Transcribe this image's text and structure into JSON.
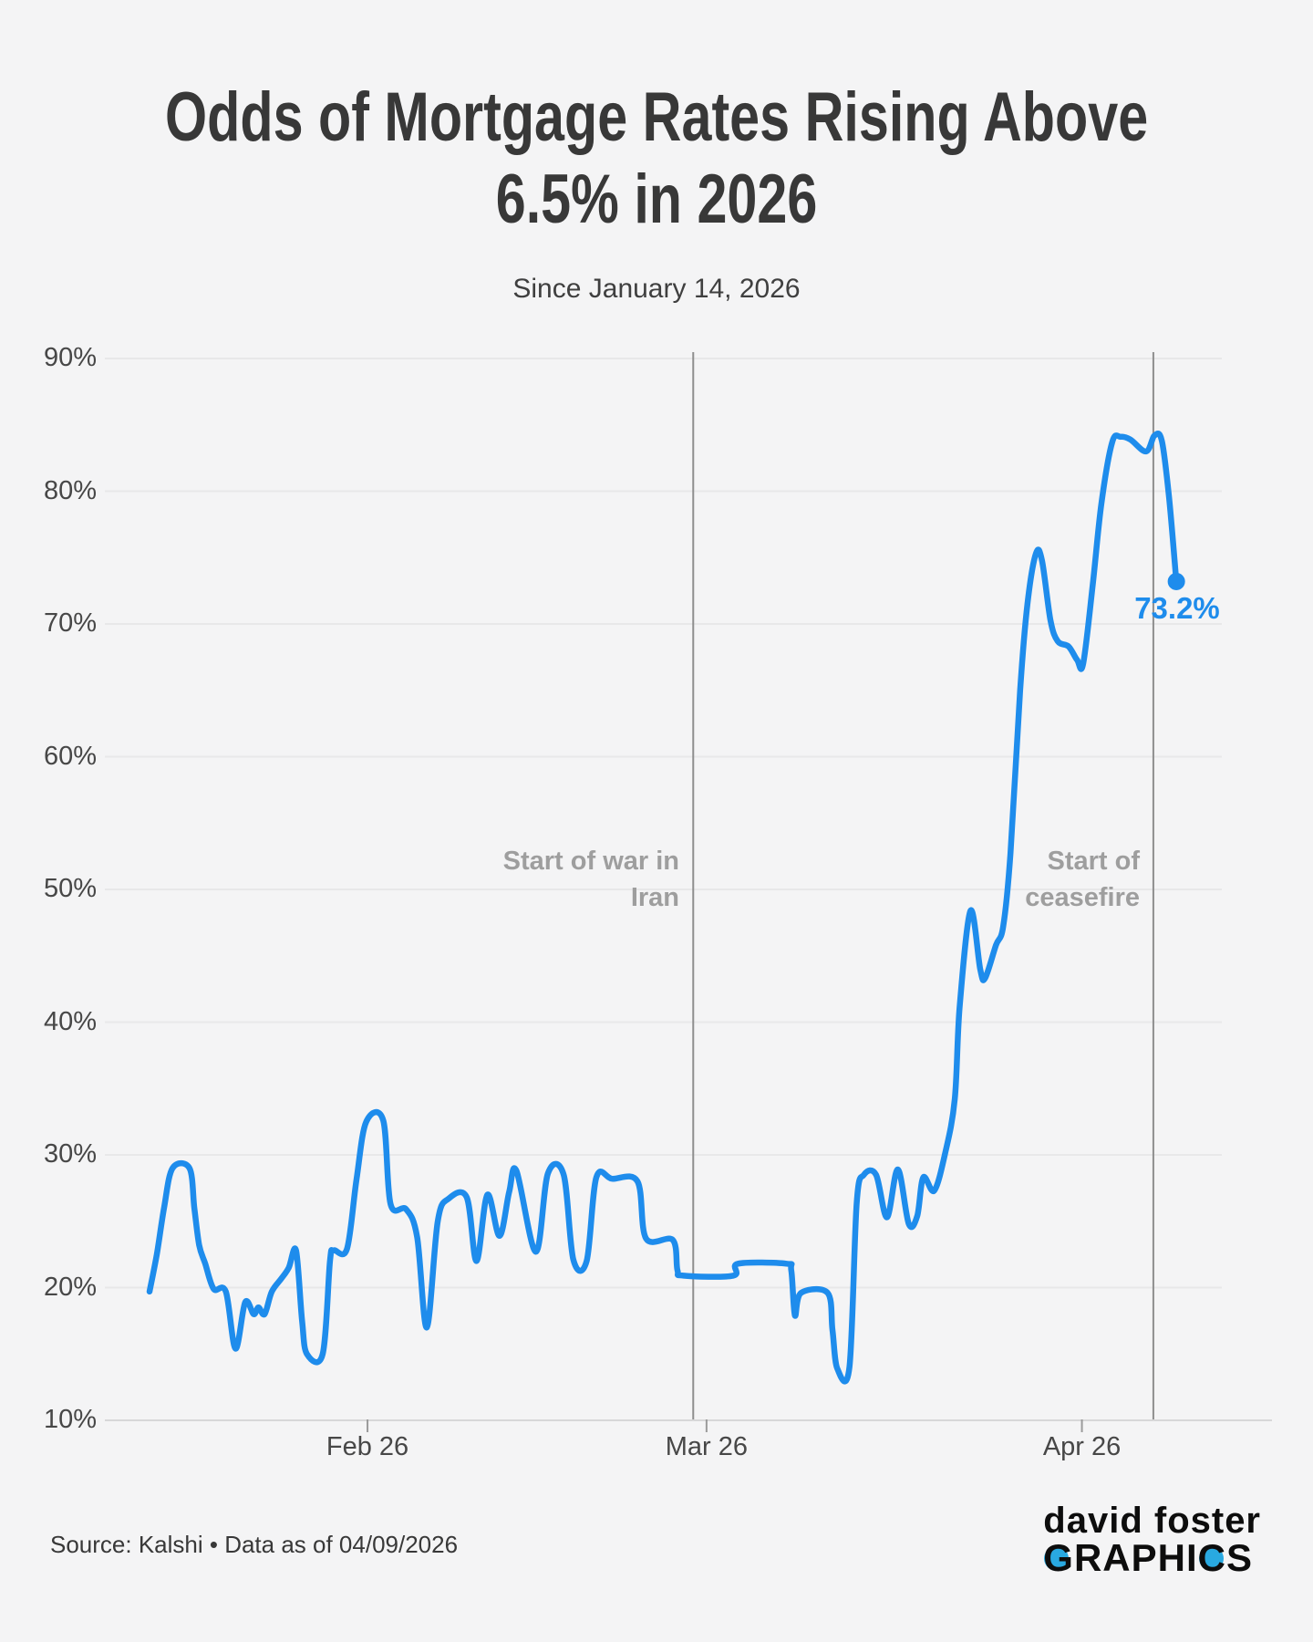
{
  "header": {
    "title_line1": "Odds of Mortgage Rates Rising Above",
    "title_line2": "6.5% in 2026",
    "subtitle": "Since January 14, 2026"
  },
  "footer": {
    "source": "Source: Kalshi • Data as of 04/09/2026",
    "logo_line1": "david foster",
    "logo_g": "G",
    "logo_raphi": "RAPHI",
    "logo_c": "C",
    "logo_s": "S",
    "logo_accent_color": "#29A9E1"
  },
  "chart_data": {
    "type": "line",
    "title": "Odds of Mortgage Rates Rising Above 6.5% in 2026",
    "subtitle": "Since January 14, 2026",
    "x_unit": "days since 2026-01-14",
    "x_start_date": "2026-01-14",
    "x_end_date": "2026-04-09",
    "ylim": [
      10,
      90
    ],
    "grid": true,
    "legend": "none",
    "line_color": "#1E8CEC",
    "background_color": "#f4f4f5",
    "y_ticks": [
      {
        "label": "90%",
        "value": 90
      },
      {
        "label": "80%",
        "value": 80
      },
      {
        "label": "70%",
        "value": 70
      },
      {
        "label": "60%",
        "value": 60
      },
      {
        "label": "50%",
        "value": 50
      },
      {
        "label": "40%",
        "value": 40
      },
      {
        "label": "30%",
        "value": 30
      },
      {
        "label": "20%",
        "value": 20
      },
      {
        "label": "10%",
        "value": 10
      }
    ],
    "x_ticks": [
      {
        "label": "Feb 26",
        "day": 18
      },
      {
        "label": "Mar 26",
        "day": 46
      },
      {
        "label": "Apr 26",
        "day": 77
      }
    ],
    "annotations": [
      {
        "label_line1": "Start of war in",
        "label_line2": "Iran",
        "day": 44.9,
        "approx_date": "2026-02-28"
      },
      {
        "label_line1": "Start of",
        "label_line2": "ceasefire",
        "day": 82.9,
        "approx_date": "2026-04-07"
      }
    ],
    "end_label": "73.2%",
    "end_value": 73.2,
    "series": [
      {
        "name": "Odds of mortgage rates rising above 6.5% in 2026 (%)",
        "points": [
          [
            0,
            19.7
          ],
          [
            0.6,
            22.5
          ],
          [
            1.2,
            26
          ],
          [
            1.9,
            29
          ],
          [
            3.3,
            29
          ],
          [
            3.7,
            26
          ],
          [
            4.1,
            23.2
          ],
          [
            4.6,
            21.8
          ],
          [
            5.3,
            19.9
          ],
          [
            6.3,
            19.7
          ],
          [
            7.1,
            15.4
          ],
          [
            7.9,
            18.9
          ],
          [
            8.6,
            18
          ],
          [
            9,
            18.5
          ],
          [
            9.5,
            18
          ],
          [
            10.1,
            19.7
          ],
          [
            10.9,
            20.7
          ],
          [
            11.5,
            21.5
          ],
          [
            12.1,
            22.8
          ],
          [
            12.6,
            17.5
          ],
          [
            13,
            15
          ],
          [
            14.3,
            15
          ],
          [
            14.9,
            22
          ],
          [
            15.2,
            22.8
          ],
          [
            16.3,
            22.9
          ],
          [
            17.1,
            28.2
          ],
          [
            17.9,
            32.5
          ],
          [
            19.3,
            32.6
          ],
          [
            19.9,
            26.3
          ],
          [
            21.2,
            25.9
          ],
          [
            22.1,
            23.8
          ],
          [
            22.9,
            17
          ],
          [
            23.8,
            25
          ],
          [
            24.7,
            26.7
          ],
          [
            26.2,
            26.8
          ],
          [
            27,
            22
          ],
          [
            27.9,
            27
          ],
          [
            28.9,
            23.9
          ],
          [
            29.7,
            27.2
          ],
          [
            30.3,
            28.8
          ],
          [
            31.9,
            22.7
          ],
          [
            32.9,
            28.6
          ],
          [
            34.2,
            28.5
          ],
          [
            35,
            22.1
          ],
          [
            36.1,
            22
          ],
          [
            36.9,
            28.3
          ],
          [
            38.2,
            28.2
          ],
          [
            40.3,
            28
          ],
          [
            41,
            23.7
          ],
          [
            43.2,
            23.6
          ],
          [
            43.6,
            21.3
          ],
          [
            44.1,
            20.9
          ],
          [
            48.2,
            20.9
          ],
          [
            48.6,
            21.8
          ],
          [
            52.6,
            21.8
          ],
          [
            53,
            21.3
          ],
          [
            53.3,
            17.9
          ],
          [
            53.8,
            19.6
          ],
          [
            56,
            19.6
          ],
          [
            56.4,
            16.8
          ],
          [
            56.8,
            13.9
          ],
          [
            57.8,
            14
          ],
          [
            58.4,
            26.4
          ],
          [
            59,
            28.5
          ],
          [
            60,
            28.5
          ],
          [
            60.9,
            25.3
          ],
          [
            61.8,
            28.9
          ],
          [
            62.7,
            24.8
          ],
          [
            63.4,
            25.4
          ],
          [
            63.9,
            28.3
          ],
          [
            64.8,
            27.3
          ],
          [
            65.7,
            30.1
          ],
          [
            66.5,
            34.2
          ],
          [
            66.9,
            41.1
          ],
          [
            67.8,
            48.4
          ],
          [
            68.6,
            44
          ],
          [
            69,
            43.3
          ],
          [
            69.9,
            45.8
          ],
          [
            70.5,
            47.2
          ],
          [
            71.1,
            52.7
          ],
          [
            71.9,
            65
          ],
          [
            72.5,
            71.5
          ],
          [
            73.2,
            75.3
          ],
          [
            73.7,
            74.8
          ],
          [
            74.4,
            70.3
          ],
          [
            75,
            68.7
          ],
          [
            75.9,
            68.3
          ],
          [
            76.6,
            67.3
          ],
          [
            77.1,
            67
          ],
          [
            77.9,
            73
          ],
          [
            78.6,
            79
          ],
          [
            79.5,
            83.7
          ],
          [
            80.2,
            84.1
          ],
          [
            81,
            83.9
          ],
          [
            82.3,
            83
          ],
          [
            83,
            84.2
          ],
          [
            83.6,
            83.8
          ],
          [
            84.2,
            79.5
          ],
          [
            84.8,
            73.2
          ]
        ]
      }
    ]
  }
}
